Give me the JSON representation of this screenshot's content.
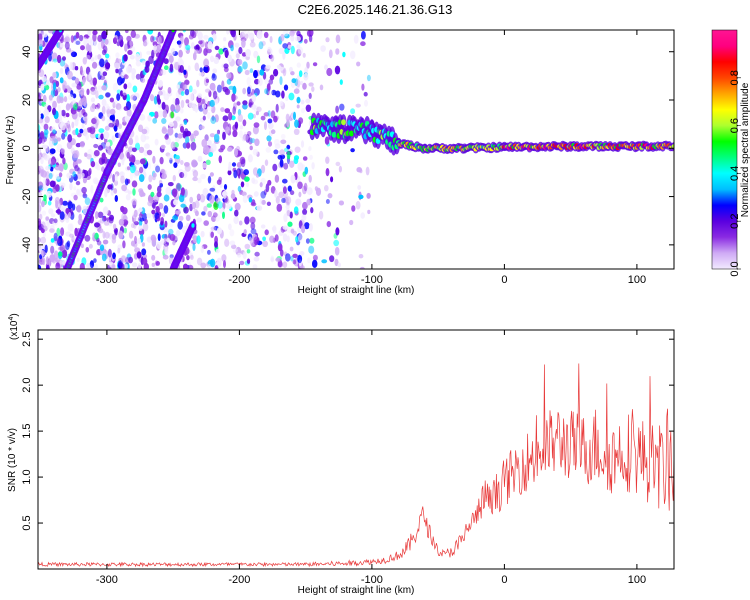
{
  "title": "C2E6.2025.146.21.36.G13",
  "chart_data": [
    {
      "type": "heatmap",
      "xlabel": "Height of straight line (km)",
      "ylabel": "Frequency (Hz)",
      "xlim": [
        -352,
        128
      ],
      "ylim": [
        -50,
        49
      ],
      "x_ticks": [
        -300,
        -200,
        -100,
        0,
        100
      ],
      "y_ticks": [
        -40,
        -20,
        0,
        20,
        40
      ],
      "x_tick_labels": [
        "-300",
        "-200",
        "-100",
        "0",
        "100"
      ],
      "y_tick_labels": [
        "-40",
        "-20",
        "0",
        "20",
        "40"
      ],
      "colorbar": {
        "label": "Normalized spectral amplitude",
        "range": [
          0,
          1
        ],
        "ticks": [
          0.0,
          0.2,
          0.4,
          0.6,
          0.8
        ],
        "tick_labels": [
          "0.0",
          "0.2",
          "0.4",
          "0.6",
          "0.8"
        ],
        "colors": [
          "#f2eaff",
          "#cfaaf5",
          "#8a2be2",
          "#5a00e0",
          "#0000ff",
          "#00bfff",
          "#00ffff",
          "#00ff7f",
          "#00ff00",
          "#adff2f",
          "#ffff00",
          "#ffa500",
          "#ff4500",
          "#ff0000",
          "#ff0080",
          "#ff1493"
        ]
      },
      "tracks": [
        {
          "name": "",
          "points": [
            [
              -352,
              34
            ],
            [
              -335,
              49
            ]
          ]
        },
        {
          "name": "",
          "points": [
            [
              -330,
              -50
            ],
            [
              -300,
              -10
            ],
            [
              -272,
              20
            ],
            [
              -250,
              49
            ]
          ]
        },
        {
          "name": "",
          "points": [
            [
              -250,
              -50
            ],
            [
              -235,
              -32
            ]
          ]
        }
      ],
      "carrier": {
        "points": [
          [
            -145,
            9
          ],
          [
            -125,
            8
          ],
          [
            -100,
            7
          ],
          [
            -80,
            2
          ],
          [
            -60,
            0
          ],
          [
            -30,
            0
          ],
          [
            0,
            0.5
          ],
          [
            50,
            0.8
          ],
          [
            100,
            0.8
          ],
          [
            128,
            1
          ]
        ]
      }
    },
    {
      "type": "line",
      "xlabel": "Height of straight line (km)",
      "ylabel": "SNR (10 * v/v)",
      "yscale_label": "(x10",
      "yscale_exponent": "4",
      "xlim": [
        -352,
        128
      ],
      "ylim": [
        0,
        2.6
      ],
      "x_ticks": [
        -300,
        -200,
        -100,
        0,
        100
      ],
      "y_ticks": [
        0.5,
        1.0,
        1.5,
        2.0,
        2.5
      ],
      "x_tick_labels": [
        "-300",
        "-200",
        "-100",
        "0",
        "100"
      ],
      "y_tick_labels": [
        "0.5",
        "1.0",
        "1.5",
        "2.0",
        "2.5"
      ],
      "series": [
        {
          "name": "",
          "color": "#e83a3a",
          "x": [
            -352,
            -300,
            -250,
            -200,
            -150,
            -120,
            -100,
            -90,
            -80,
            -75,
            -70,
            -65,
            -62,
            -60,
            -58,
            -55,
            -52,
            -50,
            -45,
            -40,
            -35,
            -30,
            -28,
            -25,
            -20,
            -15,
            -10,
            -5,
            0,
            5,
            10,
            20,
            30,
            40,
            50,
            60,
            70,
            80,
            90,
            100,
            110,
            120,
            128
          ],
          "y": [
            0.05,
            0.05,
            0.05,
            0.05,
            0.05,
            0.06,
            0.08,
            0.1,
            0.15,
            0.2,
            0.3,
            0.45,
            0.6,
            0.55,
            0.45,
            0.35,
            0.25,
            0.2,
            0.15,
            0.2,
            0.25,
            0.35,
            0.45,
            0.5,
            0.6,
            0.8,
            0.7,
            0.85,
            0.95,
            1.0,
            1.1,
            1.2,
            1.3,
            1.4,
            1.35,
            1.3,
            1.35,
            1.2,
            1.3,
            1.25,
            1.15,
            1.1,
            1.2
          ],
          "spread": [
            0.02,
            0.02,
            0.02,
            0.02,
            0.02,
            0.03,
            0.03,
            0.04,
            0.05,
            0.08,
            0.1,
            0.12,
            0.1,
            0.1,
            0.1,
            0.08,
            0.06,
            0.05,
            0.05,
            0.07,
            0.1,
            0.12,
            0.12,
            0.12,
            0.15,
            0.2,
            0.2,
            0.25,
            0.25,
            0.3,
            0.3,
            0.35,
            0.4,
            0.4,
            0.4,
            0.4,
            0.45,
            0.4,
            0.45,
            0.45,
            0.45,
            0.5,
            0.6
          ]
        }
      ]
    }
  ]
}
